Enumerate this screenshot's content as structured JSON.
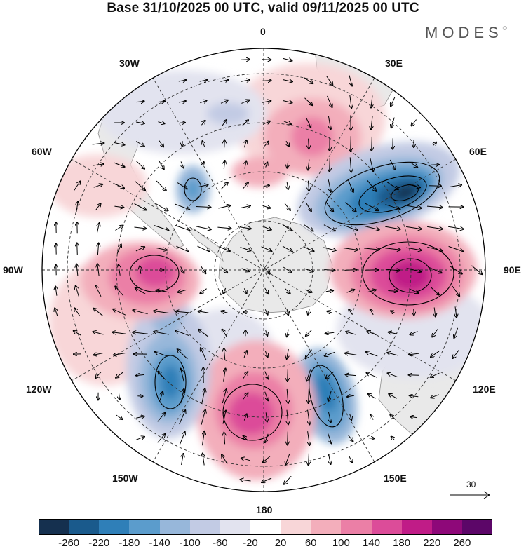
{
  "title": "Base 31/10/2025 00 UTC, valid 09/11/2025 00 UTC",
  "brand": "MODES",
  "brand_mark": "©",
  "longitude_labels": {
    "lon_0": "0",
    "lon_30e": "30E",
    "lon_60e": "60E",
    "lon_90e": "90E",
    "lon_120e": "120E",
    "lon_150e": "150E",
    "lon_180": "180",
    "lon_150w": "150W",
    "lon_120w": "120W",
    "lon_90w": "90W",
    "lon_60w": "60W",
    "lon_30w": "30W"
  },
  "reference_vector": "30",
  "legend": {
    "ticks": [
      "-260",
      "-220",
      "-180",
      "-140",
      "-100",
      "-60",
      "-20",
      "20",
      "60",
      "100",
      "140",
      "180",
      "220",
      "260"
    ],
    "colors": [
      "#15304f",
      "#1a5a8c",
      "#2f7fb8",
      "#5b9ccc",
      "#97b7da",
      "#c2cbe4",
      "#e2e3ef",
      "#ffffff",
      "#f8d6d8",
      "#f3aebb",
      "#eb7fa6",
      "#dc4c99",
      "#c01c87",
      "#8e0879",
      "#5c0668"
    ]
  },
  "anomaly_centers": [
    {
      "sign": "negative",
      "value": -260,
      "label": "south of Africa / Indian Ocean near 45E"
    },
    {
      "sign": "positive",
      "value": 220,
      "label": "southern Indian Ocean near 90E"
    },
    {
      "sign": "negative",
      "value": -180,
      "label": "south of Australia near 150E"
    },
    {
      "sign": "positive",
      "value": 180,
      "label": "Ross Sea sector near 180"
    },
    {
      "sign": "negative",
      "value": -180,
      "label": "South Pacific near 120W"
    },
    {
      "sign": "positive",
      "value": 180,
      "label": "Bellingshausen sector near 90W"
    }
  ]
}
